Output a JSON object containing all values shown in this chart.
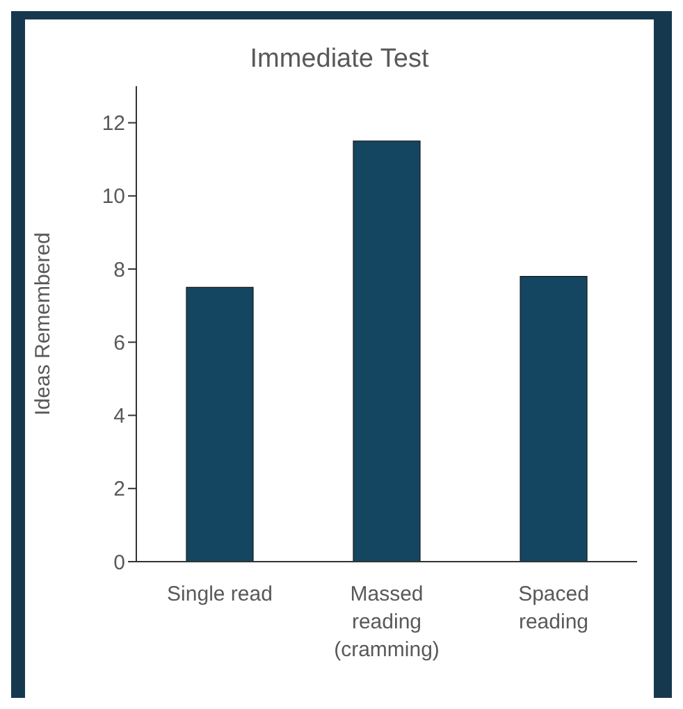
{
  "chart_data": {
    "type": "bar",
    "title": "Immediate Test",
    "ylabel": "Ideas Remembered",
    "categories": [
      "Single read",
      "Massed reading (cramming)",
      "Spaced reading"
    ],
    "values": [
      7.5,
      11.5,
      7.8
    ],
    "color": "#144661",
    "ylim": [
      0,
      13
    ],
    "yticks": [
      0,
      2,
      4,
      6,
      8,
      10,
      12
    ],
    "grid": false,
    "legend": false
  }
}
